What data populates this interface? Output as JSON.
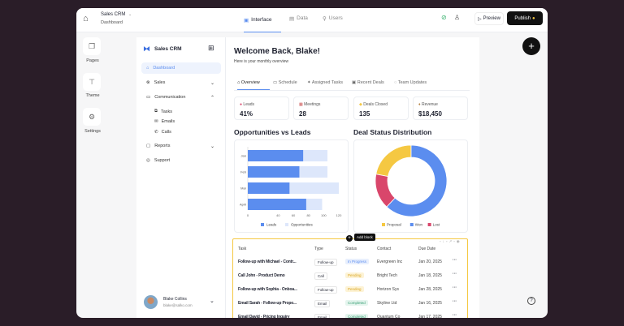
{
  "app": {
    "name": "Sales CRM",
    "page": "Dashboard"
  },
  "top_tabs": [
    {
      "label": "Interface",
      "icon": "layout-icon",
      "active": true
    },
    {
      "label": "Data",
      "icon": "table-icon"
    },
    {
      "label": "Users",
      "icon": "user-icon"
    }
  ],
  "top_actions": {
    "preview": "Preview",
    "publish": "Publish"
  },
  "rail": [
    {
      "label": "Pages",
      "icon": "pages-icon"
    },
    {
      "label": "Theme",
      "icon": "theme-icon"
    },
    {
      "label": "Settings",
      "icon": "gear-icon"
    }
  ],
  "sidebar": {
    "title": "Sales CRM",
    "items": [
      {
        "label": "Dashboard"
      },
      {
        "label": "Sales"
      },
      {
        "label": "Communication"
      },
      {
        "label": "Reports"
      },
      {
        "label": "Support"
      }
    ],
    "sub_items": [
      {
        "label": "Tasks"
      },
      {
        "label": "Emails"
      },
      {
        "label": "Calls"
      }
    ],
    "user": {
      "name": "Blake Collins",
      "email": "blake@salko.com"
    }
  },
  "main": {
    "title": "Welcome Back, Blake!",
    "subtitle": "Here is your monthly overview",
    "tabs": [
      "Overview",
      "Schedule",
      "Assigned Tasks",
      "Recent Deals",
      "Team Updates"
    ],
    "stats": [
      {
        "label": "Leads",
        "value": "41%"
      },
      {
        "label": "Meetings",
        "value": "28"
      },
      {
        "label": "Deals Closed",
        "value": "135"
      },
      {
        "label": "Revenue",
        "value": "$18,450"
      }
    ],
    "tooltip": "Add block",
    "table": {
      "headers": [
        "Task",
        "Type",
        "Status",
        "Contact",
        "Due Date"
      ],
      "rows": [
        [
          "Follow-up with Michael - Contr...",
          "Follow-up",
          "In Progress",
          "Evergreen Inc",
          "Jan 20, 2025"
        ],
        [
          "Call John - Product Demo",
          "Call",
          "Pending",
          "Bright Tech",
          "Jan 18, 2025"
        ],
        [
          "Follow-up with Sophia - Onboa...",
          "Follow-up",
          "Pending",
          "Horizon Sys",
          "Jan 28, 2025"
        ],
        [
          "Email Sarah - Follow-up Propo...",
          "Email",
          "Completed",
          "Skyline Ltd",
          "Jan 16, 2025"
        ],
        [
          "Email David - Pricing Inquiry",
          "Email",
          "Completed",
          "Quantum Co",
          "Jan 17, 2025"
        ]
      ]
    }
  },
  "colors": {
    "accent": "#5b8def",
    "light": "#dde7fb",
    "proposal": "#f5c842",
    "won": "#5b8def",
    "lost": "#d9466b",
    "publish_bg": "#111111"
  },
  "chart_data": [
    {
      "type": "bar",
      "orientation": "horizontal",
      "title": "Opportunities vs Leads",
      "categories": [
        "Jan",
        "Feb",
        "Mar",
        "April"
      ],
      "series": [
        {
          "name": "Leads",
          "values": [
            73,
            68,
            55,
            77
          ]
        },
        {
          "name": "Opportunities",
          "values": [
            105,
            105,
            120,
            98
          ]
        }
      ],
      "xlim": [
        0,
        120
      ],
      "xticks": [
        0,
        40,
        60,
        80,
        100,
        120
      ],
      "legend": "bottom"
    },
    {
      "type": "pie",
      "donut": true,
      "title": "Deal Status Distribution",
      "labels": [
        "Proposal",
        "Won",
        "Lost"
      ],
      "values": [
        22,
        62,
        16
      ],
      "legend": "bottom"
    }
  ]
}
